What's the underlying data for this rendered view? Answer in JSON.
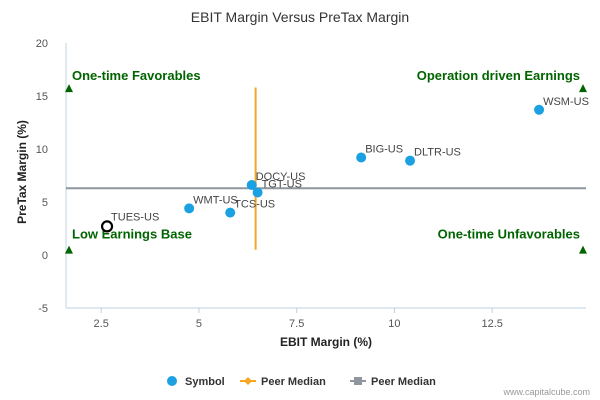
{
  "chart_data": {
    "type": "scatter",
    "title": "EBIT Margin Versus PreTax Margin",
    "xlabel": "EBIT Margin (%)",
    "ylabel": "PreTax Margin (%)",
    "xlim": [
      1.6,
      14.9
    ],
    "ylim": [
      -5,
      20
    ],
    "x_ticks": [
      2.5,
      5,
      7.5,
      10,
      12.5
    ],
    "y_ticks": [
      -5,
      0,
      5,
      10,
      15,
      20
    ],
    "x_tick_labels": [
      "2.5",
      "5",
      "7.5",
      "10",
      "12.5"
    ],
    "y_tick_labels": [
      "-5",
      "0",
      "5",
      "10",
      "15",
      "20"
    ],
    "points": [
      {
        "label": "WSM-US",
        "x": 13.7,
        "y": 13.7
      },
      {
        "label": "BIG-US",
        "x": 9.15,
        "y": 9.2
      },
      {
        "label": "DLTR-US",
        "x": 10.4,
        "y": 8.9
      },
      {
        "label": "DOCY-US",
        "x": 6.35,
        "y": 6.6
      },
      {
        "label": "TGT-US",
        "x": 6.5,
        "y": 5.9
      },
      {
        "label": "WMT-US",
        "x": 4.75,
        "y": 4.4
      },
      {
        "label": "TCS-US",
        "x": 5.8,
        "y": 4.0
      }
    ],
    "highlight_point": {
      "label": "TUES-US",
      "x": 2.65,
      "y": 2.7
    },
    "peer_median_x": 6.45,
    "peer_median_y": 6.3,
    "quadrant_labels": {
      "top_left": "One-time Favorables",
      "top_right": "Operation driven Earnings",
      "bottom_left": "Low Earnings Base",
      "bottom_right": "One-time Unfavorables"
    },
    "legend": {
      "placement": "bottom-center",
      "items": [
        {
          "label": "Symbol",
          "marker": "circle",
          "color": "#1ba1e2"
        },
        {
          "label": "Peer Median",
          "marker": "diamond-line",
          "color": "#f5a623"
        },
        {
          "label": "Peer Median",
          "marker": "square-line",
          "color": "#8f969e"
        }
      ]
    },
    "grid": false,
    "colors": {
      "point": "#1ba1e2",
      "median_vertical": "#f5a623",
      "median_horizontal": "#8f969e",
      "quadrant_text": "#006400",
      "axis": "#c0d0e0"
    }
  },
  "watermark": "www.capitalcube.com"
}
